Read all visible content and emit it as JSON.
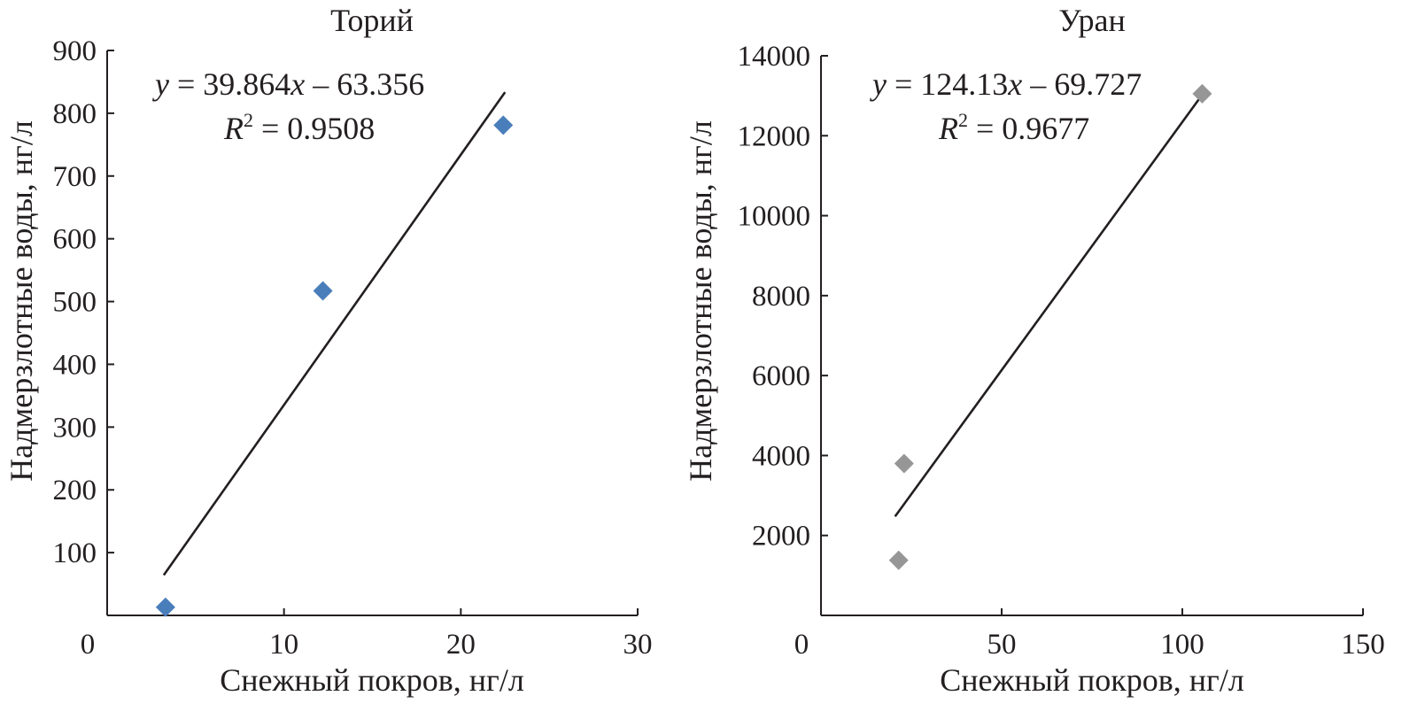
{
  "chart_data": [
    {
      "type": "scatter",
      "title": "Торий",
      "xlabel": "Снежный покров, нг/л",
      "ylabel": "Надмерзлотные воды, нг/л",
      "xlim": [
        0,
        30
      ],
      "ylim": [
        0,
        900
      ],
      "x_ticks": [
        0,
        10,
        20,
        30
      ],
      "y_ticks": [
        100,
        200,
        300,
        400,
        500,
        600,
        700,
        800,
        900
      ],
      "marker_color": "#4a7ebb",
      "series": [
        {
          "x": [
            3.3,
            12.2,
            22.4
          ],
          "y": [
            13,
            517,
            781
          ]
        }
      ],
      "trendline": {
        "slope": 39.864,
        "intercept": -63.356,
        "x_range": [
          3.2,
          22.5
        ]
      },
      "equation": {
        "y_var": "y",
        "eq_rhs": " = 39.864",
        "x_var": "x",
        "tail": " – 63.356",
        "r_var": "R",
        "r_exp": "2",
        "r_value": " = 0.9508"
      }
    },
    {
      "type": "scatter",
      "title": "Уран",
      "xlabel": "Снежный покров, нг/л",
      "ylabel": "Надмерзлотные воды, нг/л",
      "xlim": [
        0,
        150
      ],
      "ylim": [
        0,
        14000
      ],
      "x_ticks": [
        0,
        50,
        100,
        150
      ],
      "y_ticks": [
        2000,
        4000,
        6000,
        8000,
        10000,
        12000,
        14000
      ],
      "marker_color": "#969696",
      "series": [
        {
          "x": [
            21.5,
            23.0,
            105.5
          ],
          "y": [
            1380,
            3800,
            13050
          ]
        }
      ],
      "trendline": {
        "slope": 124.13,
        "intercept": -69.727,
        "x_range": [
          20.5,
          105.5
        ]
      },
      "equation": {
        "y_var": "y",
        "eq_rhs": " = 124.13",
        "x_var": "x",
        "tail": " – 69.727",
        "r_var": "R",
        "r_exp": "2",
        "r_value": " = 0.9677"
      }
    }
  ]
}
